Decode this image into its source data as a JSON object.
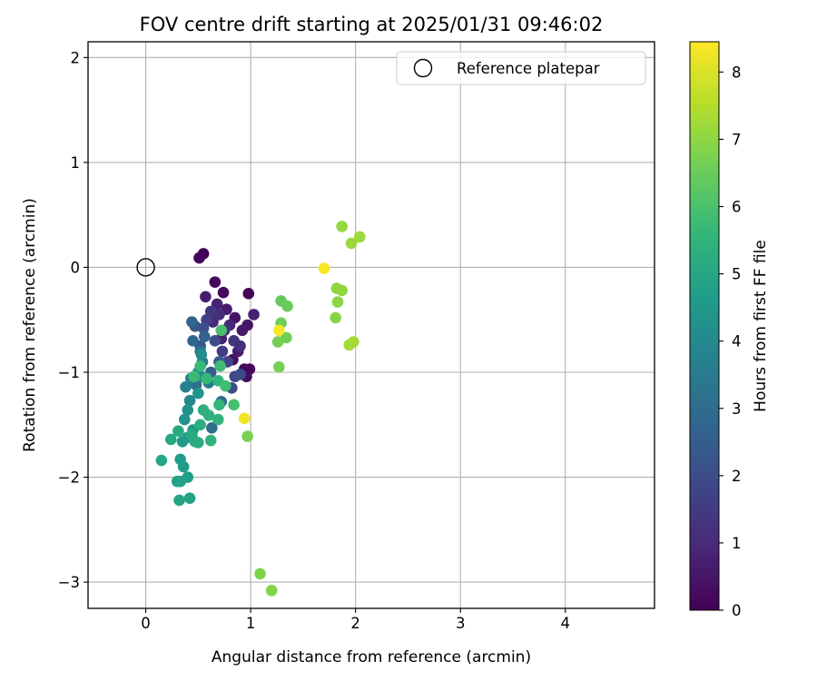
{
  "chart_data": {
    "type": "scatter",
    "title": "FOV centre drift starting at 2025/01/31 09:46:02",
    "xlabel": "Angular distance from reference (arcmin)",
    "ylabel": "Rotation from reference (arcmin)",
    "xlim": [
      -0.55,
      4.85
    ],
    "ylim": [
      -3.25,
      2.15
    ],
    "x_ticks": [
      0,
      1,
      2,
      3,
      4
    ],
    "y_ticks": [
      -3,
      -2,
      -1,
      0,
      1,
      2
    ],
    "x_tick_labels": [
      "0",
      "1",
      "2",
      "3",
      "4"
    ],
    "y_tick_labels": [
      "−3",
      "−2",
      "−1",
      "0",
      "1",
      "2"
    ],
    "grid": true,
    "legend": {
      "placement": "top-right",
      "entries": [
        {
          "label": "Reference platepar",
          "marker": "open-circle"
        }
      ]
    },
    "reference_point": {
      "x": 0,
      "y": 0
    },
    "colorbar": {
      "label": "Hours from first FF file",
      "colormap": "viridis",
      "range": [
        0,
        8.45
      ],
      "ticks": [
        0,
        1,
        2,
        3,
        4,
        5,
        6,
        7,
        8
      ],
      "tick_labels": [
        "0",
        "1",
        "2",
        "3",
        "4",
        "5",
        "6",
        "7",
        "8"
      ]
    },
    "colormap_stops": [
      "#440154",
      "#482878",
      "#3e4989",
      "#31688e",
      "#26828e",
      "#1f9e89",
      "#35b779",
      "#6ece58",
      "#b5de2b",
      "#fde725"
    ],
    "points": [
      [
        0.55,
        0.13,
        0.05
      ],
      [
        0.51,
        0.09,
        0.1
      ],
      [
        0.66,
        -0.14,
        0.15
      ],
      [
        0.74,
        -0.24,
        0.2
      ],
      [
        0.98,
        -0.25,
        0.1
      ],
      [
        0.99,
        -0.97,
        0.2
      ],
      [
        0.94,
        -0.97,
        0.15
      ],
      [
        0.96,
        -1.04,
        0.3
      ],
      [
        0.83,
        -0.88,
        0.35
      ],
      [
        0.85,
        -0.48,
        0.45
      ],
      [
        0.92,
        -0.6,
        0.55
      ],
      [
        0.77,
        -0.4,
        0.6
      ],
      [
        0.97,
        -0.55,
        0.5
      ],
      [
        1.03,
        -0.45,
        0.8
      ],
      [
        0.88,
        -0.8,
        0.65
      ],
      [
        0.72,
        -0.68,
        0.75
      ],
      [
        0.57,
        -0.28,
        0.7
      ],
      [
        0.68,
        -0.35,
        0.85
      ],
      [
        0.8,
        -0.55,
        0.95
      ],
      [
        0.64,
        -0.52,
        1.0
      ],
      [
        0.7,
        -0.45,
        1.1
      ],
      [
        0.75,
        -0.6,
        1.2
      ],
      [
        0.84,
        -0.7,
        1.3
      ],
      [
        0.9,
        -0.75,
        1.15
      ],
      [
        0.62,
        -0.42,
        1.4
      ],
      [
        0.58,
        -0.5,
        1.6
      ],
      [
        0.73,
        -0.8,
        1.5
      ],
      [
        0.78,
        -0.9,
        1.7
      ],
      [
        0.85,
        -1.04,
        1.8
      ],
      [
        0.82,
        -1.15,
        1.9
      ],
      [
        0.9,
        -1.02,
        1.95
      ],
      [
        0.66,
        -0.7,
        2.0
      ],
      [
        0.55,
        -0.58,
        2.1
      ],
      [
        0.52,
        -0.75,
        2.2
      ],
      [
        0.47,
        -0.56,
        2.3
      ],
      [
        0.7,
        -0.9,
        2.4
      ],
      [
        0.62,
        -1.0,
        2.5
      ],
      [
        0.56,
        -0.66,
        2.6
      ],
      [
        0.44,
        -0.52,
        2.7
      ],
      [
        0.45,
        -0.7,
        2.8
      ],
      [
        0.72,
        -1.28,
        2.9
      ],
      [
        0.63,
        -1.53,
        3.0
      ],
      [
        0.48,
        -1.12,
        3.1
      ],
      [
        0.52,
        -0.8,
        3.25
      ],
      [
        0.54,
        -0.9,
        3.4
      ],
      [
        0.6,
        -1.1,
        3.55
      ],
      [
        0.43,
        -1.06,
        3.7
      ],
      [
        0.38,
        -1.14,
        3.8
      ],
      [
        0.42,
        -1.27,
        3.9
      ],
      [
        0.5,
        -1.0,
        4.0
      ],
      [
        0.53,
        -0.83,
        4.1
      ],
      [
        0.56,
        -1.05,
        4.2
      ],
      [
        0.4,
        -1.36,
        4.25
      ],
      [
        0.37,
        -1.45,
        4.3
      ],
      [
        0.5,
        -1.2,
        4.4
      ],
      [
        0.45,
        -1.55,
        4.5
      ],
      [
        0.4,
        -1.62,
        4.55
      ],
      [
        0.35,
        -1.66,
        4.6
      ],
      [
        0.33,
        -1.83,
        4.65
      ],
      [
        0.36,
        -1.9,
        4.7
      ],
      [
        0.4,
        -2.0,
        4.75
      ],
      [
        0.3,
        -2.04,
        4.8
      ],
      [
        0.33,
        -2.04,
        4.85
      ],
      [
        0.42,
        -2.2,
        4.9
      ],
      [
        0.32,
        -2.22,
        4.95
      ],
      [
        0.15,
        -1.84,
        5.0
      ],
      [
        0.24,
        -1.64,
        5.05
      ],
      [
        0.31,
        -1.56,
        5.1
      ],
      [
        0.44,
        -1.6,
        5.15
      ],
      [
        0.47,
        -1.66,
        5.2
      ],
      [
        0.5,
        -1.67,
        5.25
      ],
      [
        0.52,
        -1.5,
        5.3
      ],
      [
        0.55,
        -1.36,
        5.35
      ],
      [
        0.6,
        -1.41,
        5.4
      ],
      [
        0.62,
        -1.65,
        5.45
      ],
      [
        0.69,
        -1.45,
        5.5
      ],
      [
        0.7,
        -1.31,
        5.55
      ],
      [
        0.69,
        -1.08,
        5.6
      ],
      [
        0.58,
        -1.06,
        5.65
      ],
      [
        0.52,
        -0.94,
        5.7
      ],
      [
        0.46,
        -1.04,
        5.75
      ],
      [
        0.71,
        -0.94,
        5.8
      ],
      [
        0.76,
        -1.13,
        5.85
      ],
      [
        0.84,
        -1.31,
        5.9
      ],
      [
        0.72,
        -0.6,
        5.95
      ],
      [
        1.29,
        -0.32,
        6.4
      ],
      [
        1.35,
        -0.37,
        6.5
      ],
      [
        1.29,
        -0.53,
        6.55
      ],
      [
        1.34,
        -0.67,
        6.6
      ],
      [
        1.26,
        -0.71,
        6.65
      ],
      [
        1.27,
        -0.95,
        6.7
      ],
      [
        0.97,
        -1.61,
        6.75
      ],
      [
        1.09,
        -2.92,
        6.8
      ],
      [
        1.2,
        -3.08,
        6.85
      ],
      [
        1.81,
        -0.48,
        6.9
      ],
      [
        1.83,
        -0.33,
        6.95
      ],
      [
        1.82,
        -0.2,
        7.0
      ],
      [
        1.87,
        -0.22,
        7.05
      ],
      [
        1.87,
        0.39,
        7.1
      ],
      [
        1.96,
        0.23,
        7.15
      ],
      [
        2.04,
        0.29,
        7.2
      ],
      [
        1.94,
        -0.74,
        7.25
      ],
      [
        1.98,
        -0.71,
        7.3
      ],
      [
        1.7,
        -0.01,
        8.4
      ],
      [
        1.27,
        -0.6,
        8.35
      ],
      [
        0.94,
        -1.44,
        8.3
      ]
    ]
  }
}
